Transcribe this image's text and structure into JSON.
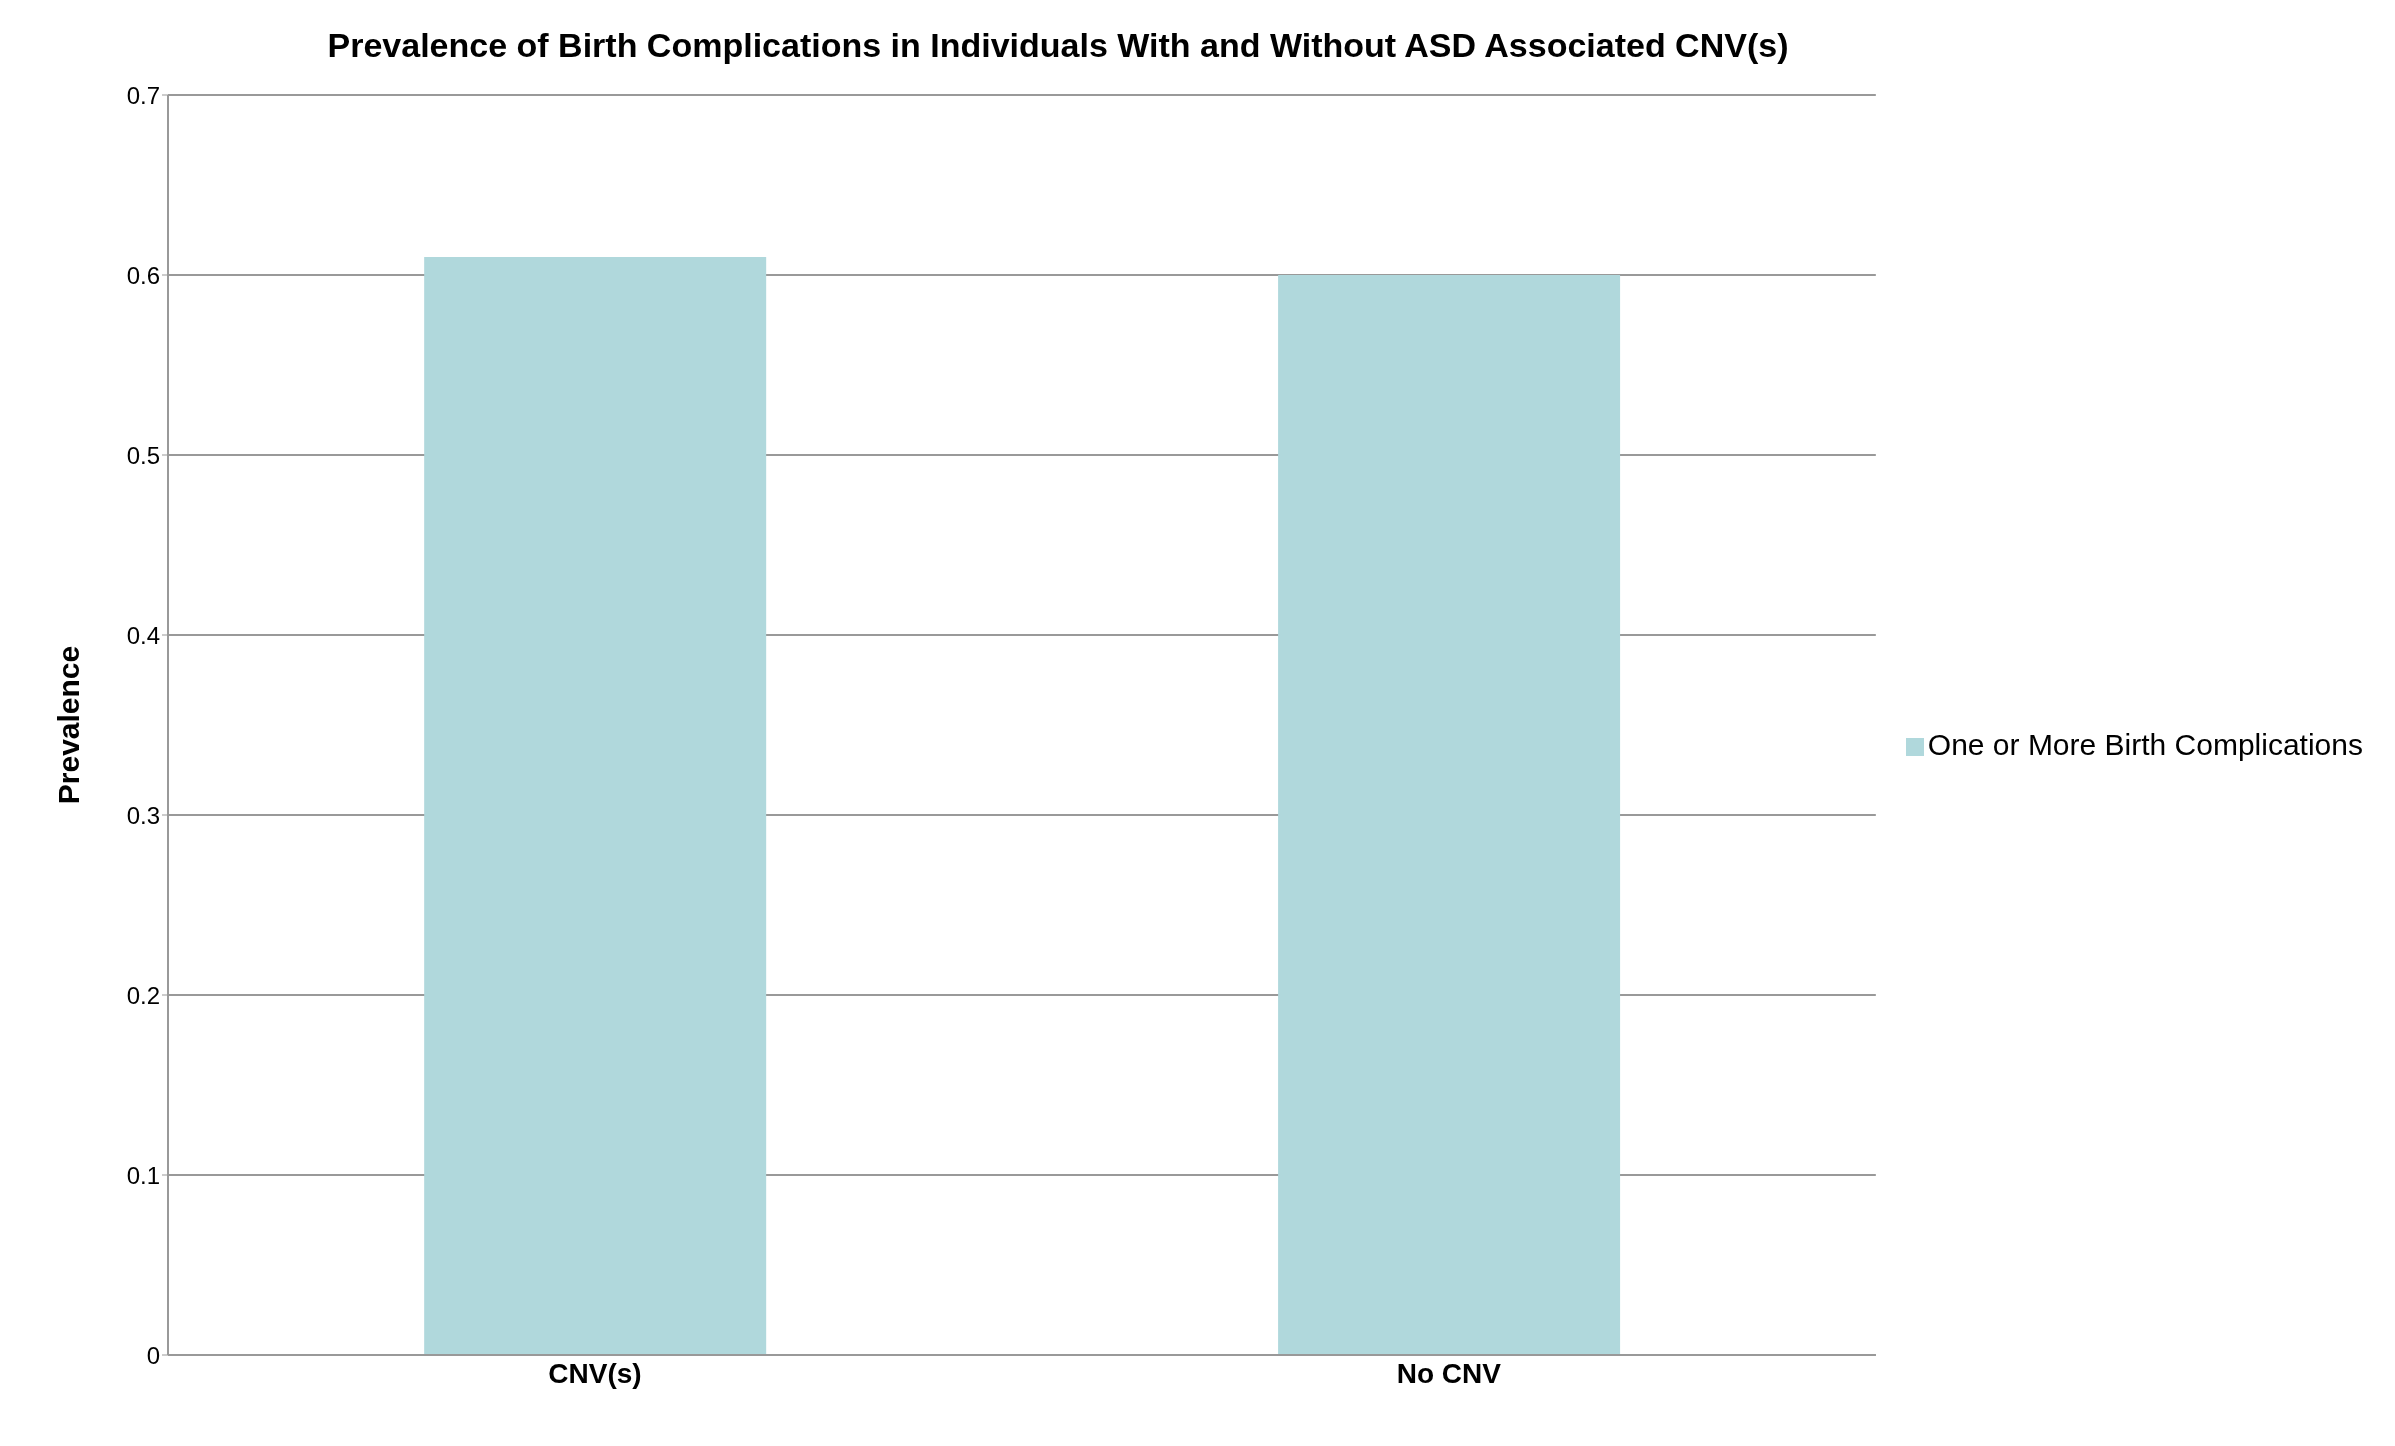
{
  "chart_data": {
    "type": "bar",
    "title": "Prevalence of Birth Complications in Individuals With and Without ASD Associated CNV(s)",
    "ylabel": "Prevalence",
    "categories": [
      "CNV(s)",
      "No CNV"
    ],
    "series": [
      {
        "name": "One or More Birth Complications",
        "color": "#b0d8dc",
        "values": [
          0.61,
          0.6
        ]
      }
    ],
    "ylim": [
      0,
      0.7
    ],
    "yticks": [
      0,
      0.1,
      0.2,
      0.3,
      0.4,
      0.5,
      0.6,
      0.7
    ],
    "grid": "y",
    "legend": "right"
  }
}
